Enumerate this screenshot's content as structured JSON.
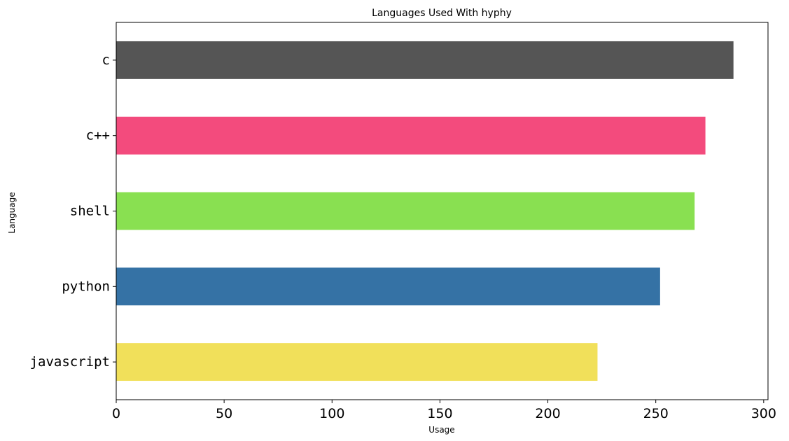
{
  "chart_data": {
    "type": "bar",
    "orientation": "horizontal",
    "title": "Languages Used With hyphy",
    "xlabel": "Usage",
    "ylabel": "Language",
    "xlim": [
      0,
      302
    ],
    "xticks": [
      0,
      50,
      100,
      150,
      200,
      250,
      300
    ],
    "grid": false,
    "categories": [
      "c",
      "c++",
      "shell",
      "python",
      "javascript"
    ],
    "values": [
      286,
      273,
      268,
      252,
      223
    ],
    "colors": [
      "#555555",
      "#f34b7d",
      "#89e051",
      "#3572a5",
      "#f1e05a"
    ]
  }
}
